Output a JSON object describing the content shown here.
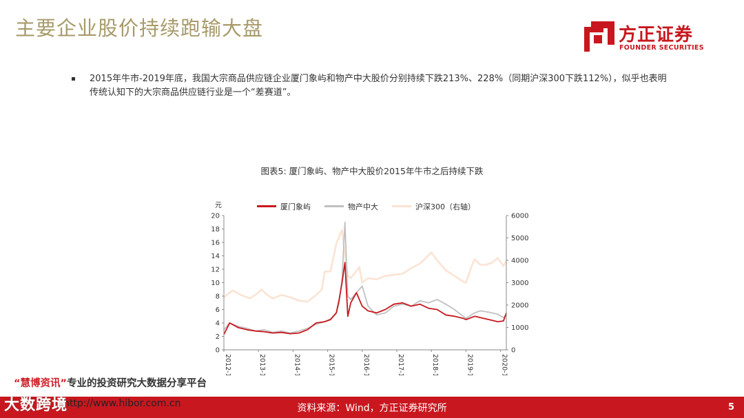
{
  "slide": {
    "title": "主要企业股价持续跑输大盘",
    "bullet": "2015年牛市-2019年底，我国大宗商品供应链企业厦门象屿和物产中大股价分别持续下跌213%、228%（同期沪深300下跌112%），似乎也表明传统认知下的大宗商品供应链行业是一个“差赛道”。",
    "page_number": "5"
  },
  "logo": {
    "cn": "方正证券",
    "en": "FOUNDER SECURITIES"
  },
  "caption": "图表5:  厦门象屿、物产中大股价2015年牛市之后持续下跌",
  "source": "资料来源：Wind，方正证券研究所",
  "watermark": {
    "quote_open": "“",
    "brand": "慧博资讯",
    "quote_close": "”",
    "slogan": "专业的投资研究大数据分享平台",
    "url": "http://www.hibor.com.cn",
    "corner": "大数跨境"
  },
  "colors": {
    "xiamen": "#c8171e",
    "wuchan": "#c0c0c0",
    "hs300": "#fbe3d3",
    "title": "#a79a6a",
    "footer": "#c8171e"
  },
  "chart_data": {
    "type": "line",
    "left_unit": "元",
    "ylim": [
      0,
      20
    ],
    "y_ticks": [
      "0",
      "2",
      "4",
      "6",
      "8",
      "10",
      "12",
      "14",
      "16",
      "18",
      "20"
    ],
    "y2lim": [
      0,
      6000
    ],
    "y2_ticks": [
      "0",
      "1000",
      "2000",
      "3000",
      "4000",
      "5000",
      "6000"
    ],
    "x_ticks": [
      "2012-1",
      "2013-1",
      "2014-1",
      "2015-1",
      "2016-1",
      "2017-1",
      "2018-1",
      "2019-1",
      "2020-1"
    ],
    "x_range": [
      "2012-1",
      "2020-3"
    ],
    "legend_position": "top",
    "series": [
      {
        "name": "沪深300（右轴）",
        "axis": "right",
        "x": [
          "2012-1",
          "2012-4",
          "2012-7",
          "2012-10",
          "2013-1",
          "2013-2",
          "2013-4",
          "2013-6",
          "2013-9",
          "2013-12",
          "2014-3",
          "2014-6",
          "2014-9",
          "2014-11",
          "2014-12",
          "2015-2",
          "2015-4",
          "2015-6",
          "2015-7",
          "2015-8",
          "2015-9",
          "2015-12",
          "2016-1",
          "2016-3",
          "2016-6",
          "2016-9",
          "2016-12",
          "2017-3",
          "2017-6",
          "2017-9",
          "2017-11",
          "2018-1",
          "2018-3",
          "2018-6",
          "2018-9",
          "2018-12",
          "2019-1",
          "2019-3",
          "2019-4",
          "2019-6",
          "2019-8",
          "2019-10",
          "2019-12",
          "2020-2",
          "2020-3"
        ],
        "values": [
          2350,
          2650,
          2450,
          2300,
          2550,
          2700,
          2450,
          2300,
          2450,
          2350,
          2200,
          2150,
          2450,
          2700,
          3500,
          3500,
          4750,
          5350,
          4200,
          3300,
          3200,
          3700,
          3000,
          3200,
          3150,
          3300,
          3350,
          3400,
          3650,
          3850,
          4100,
          4350,
          4000,
          3550,
          3300,
          3050,
          3000,
          3750,
          4050,
          3800,
          3800,
          3900,
          4100,
          3750,
          3950
        ]
      },
      {
        "name": "物产中大",
        "axis": "left",
        "x": [
          "2012-1",
          "2012-3",
          "2012-6",
          "2012-9",
          "2012-12",
          "2013-3",
          "2013-6",
          "2013-9",
          "2013-12",
          "2014-3",
          "2014-6",
          "2014-9",
          "2014-12",
          "2015-2",
          "2015-4",
          "2015-5",
          "2015-6",
          "2015-7",
          "2015-8",
          "2015-9",
          "2015-11",
          "2016-1",
          "2016-3",
          "2016-6",
          "2016-9",
          "2016-12",
          "2017-3",
          "2017-6",
          "2017-9",
          "2017-12",
          "2018-3",
          "2018-6",
          "2018-9",
          "2018-12",
          "2019-1",
          "2019-4",
          "2019-6",
          "2019-9",
          "2019-12",
          "2020-2",
          "2020-3"
        ],
        "values": [
          3.0,
          4.0,
          3.5,
          3.2,
          2.8,
          3.0,
          2.6,
          2.8,
          2.5,
          2.8,
          3.2,
          3.8,
          4.2,
          4.6,
          5.5,
          7.0,
          10.5,
          19.0,
          8.0,
          7.5,
          8.5,
          9.5,
          6.5,
          5.2,
          5.5,
          6.5,
          6.8,
          6.5,
          7.3,
          7.0,
          7.5,
          6.8,
          6.0,
          5.0,
          4.7,
          5.5,
          5.8,
          5.6,
          5.3,
          4.8,
          5.2
        ]
      },
      {
        "name": "厦门象屿",
        "axis": "left",
        "x": [
          "2012-1",
          "2012-3",
          "2012-6",
          "2012-9",
          "2012-12",
          "2013-3",
          "2013-6",
          "2013-9",
          "2013-12",
          "2014-3",
          "2014-6",
          "2014-9",
          "2014-12",
          "2015-2",
          "2015-4",
          "2015-5",
          "2015-6",
          "2015-7",
          "2015-8",
          "2015-9",
          "2015-11",
          "2016-1",
          "2016-3",
          "2016-6",
          "2016-9",
          "2016-12",
          "2017-3",
          "2017-6",
          "2017-9",
          "2017-12",
          "2018-3",
          "2018-6",
          "2018-9",
          "2018-12",
          "2019-1",
          "2019-4",
          "2019-6",
          "2019-9",
          "2019-12",
          "2020-2",
          "2020-3"
        ],
        "values": [
          2.3,
          4.0,
          3.3,
          3.0,
          2.8,
          2.7,
          2.5,
          2.6,
          2.4,
          2.5,
          3.0,
          4.0,
          4.2,
          4.5,
          5.5,
          7.5,
          10.0,
          13.0,
          5.0,
          7.0,
          8.5,
          6.5,
          5.8,
          5.5,
          6.0,
          6.8,
          7.0,
          6.5,
          6.8,
          6.2,
          6.0,
          5.2,
          5.0,
          4.7,
          4.5,
          5.0,
          4.8,
          4.5,
          4.2,
          4.3,
          5.5
        ]
      }
    ]
  }
}
